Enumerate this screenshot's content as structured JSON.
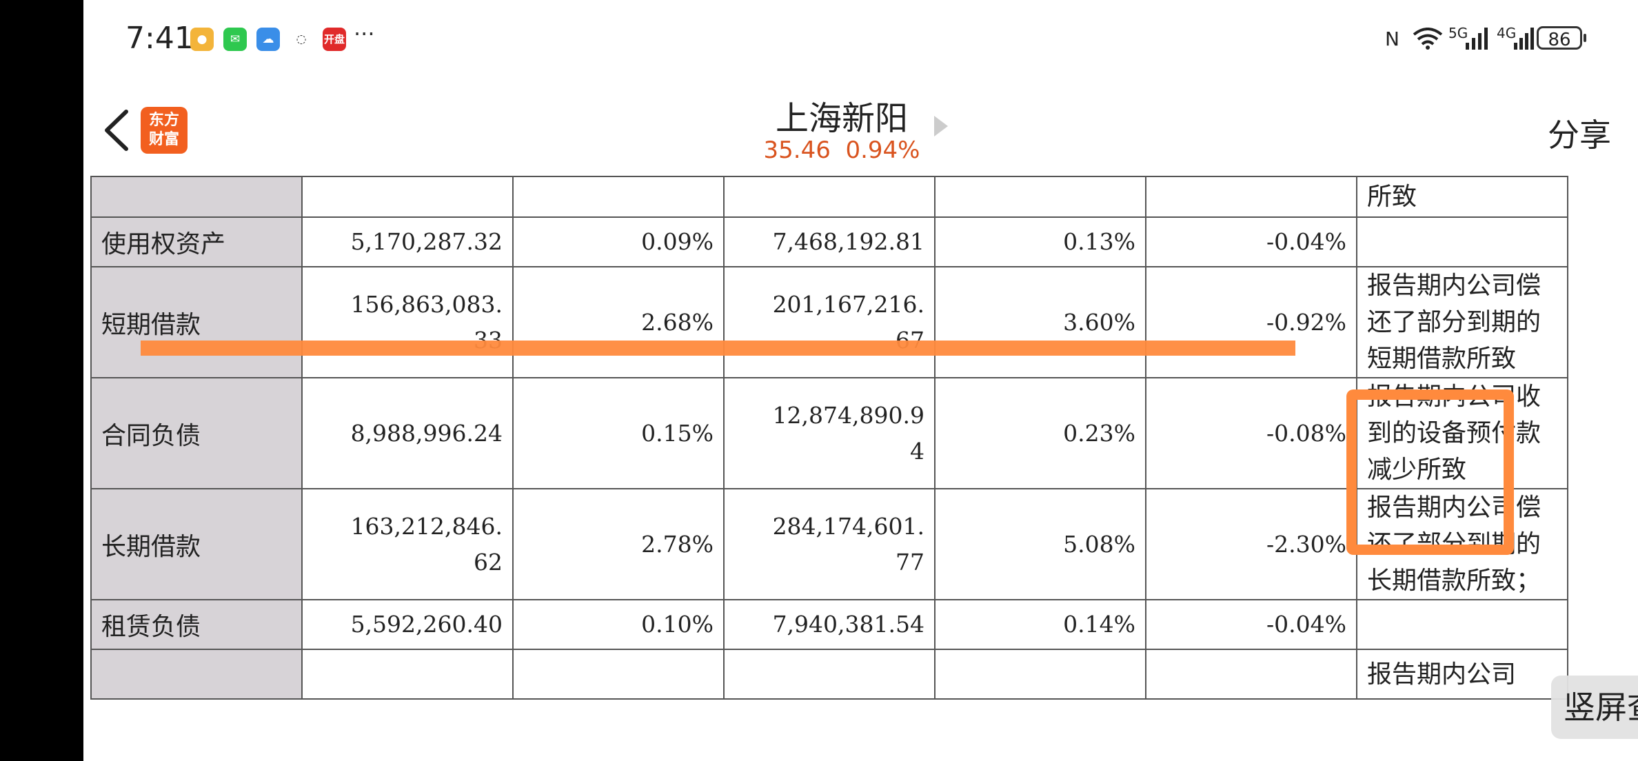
{
  "status_bar": {
    "time": "7:41",
    "apps": [
      {
        "icon": "weibo-icon",
        "color": "#f3b43a"
      },
      {
        "icon": "wechat-icon",
        "color": "#2ec84f"
      },
      {
        "icon": "cloud-icon",
        "color": "#3a8ee8"
      },
      {
        "icon": "lenovo-icon",
        "color": "#ffffff"
      },
      {
        "icon": "kaipan-icon",
        "color": "#e02a2a",
        "label": "开盘"
      }
    ],
    "more": "···",
    "network_5g": "5G",
    "network_4g": "4G",
    "battery": "86"
  },
  "header": {
    "logo_text_1": "东方",
    "logo_text_2": "财富",
    "stock_name": "上海新阳",
    "price": "35.46",
    "change": "0.94%",
    "share_label": "分享",
    "accent": "#d9531e"
  },
  "table": {
    "rows": [
      {
        "name": "",
        "c1": "",
        "c2": "",
        "c3": "",
        "c4": "",
        "c5": "",
        "note": "所致"
      },
      {
        "name": "使用权资产",
        "c1": "5,170,287.32",
        "c2": "0.09%",
        "c3": "7,468,192.81",
        "c4": "0.13%",
        "c5": "-0.04%",
        "note": ""
      },
      {
        "name": "短期借款",
        "c1": "156,863,083.\n33",
        "c2": "2.68%",
        "c3": "201,167,216.\n67",
        "c4": "3.60%",
        "c5": "-0.92%",
        "note": "报告期内公司偿还了部分到期的短期借款所致"
      },
      {
        "name": "合同负债",
        "c1": "8,988,996.24",
        "c2": "0.15%",
        "c3": "12,874,890.9\n4",
        "c4": "0.23%",
        "c5": "-0.08%",
        "note": "报告期内公司收到的设备预付款减少所致"
      },
      {
        "name": "长期借款",
        "c1": "163,212,846.\n62",
        "c2": "2.78%",
        "c3": "284,174,601.\n77",
        "c4": "5.08%",
        "c5": "-2.30%",
        "note": "报告期内公司偿还了部分到期的长期借款所致；"
      },
      {
        "name": "租赁负债",
        "c1": "5,592,260.40",
        "c2": "0.10%",
        "c3": "7,940,381.54",
        "c4": "0.14%",
        "c5": "-0.04%",
        "note": ""
      },
      {
        "name": "",
        "c1": "",
        "c2": "",
        "c3": "",
        "c4": "",
        "c5": "",
        "note": "报告期内公司"
      }
    ]
  },
  "portrait_button": "竖屏查看",
  "highlight_color": "#ff8a3d"
}
